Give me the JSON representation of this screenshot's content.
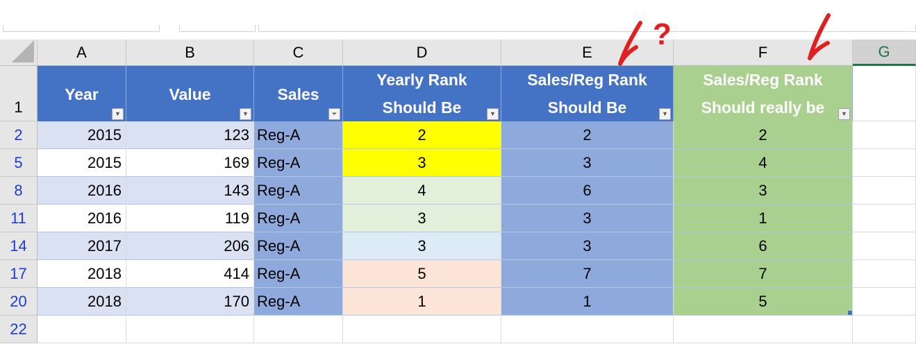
{
  "columns": [
    "A",
    "B",
    "C",
    "D",
    "E",
    "F",
    "G"
  ],
  "selected_column": "G",
  "row_numbers": [
    "1",
    "2",
    "5",
    "8",
    "11",
    "14",
    "17",
    "20",
    "22"
  ],
  "headers": [
    {
      "line1": "Year",
      "line2": ""
    },
    {
      "line1": "Value",
      "line2": ""
    },
    {
      "line1": "Sales",
      "line2": ""
    },
    {
      "line1": "Yearly Rank",
      "line2": "Should Be"
    },
    {
      "line1": "Sales/Reg Rank",
      "line2": "Should Be"
    },
    {
      "line1": "Sales/Reg Rank",
      "line2": "Should really be"
    }
  ],
  "filter_icons": [
    "dropdown-arrow",
    "dropdown-arrow",
    "filter-applied",
    "dropdown-arrow",
    "dropdown-arrow",
    "dropdown-arrow"
  ],
  "rows": [
    {
      "year": "2015",
      "value": "123",
      "sales": "Reg-A",
      "yearly": "2",
      "salesreg": "2",
      "really": "2",
      "d_color": "#FFFF00"
    },
    {
      "year": "2015",
      "value": "169",
      "sales": "Reg-A",
      "yearly": "3",
      "salesreg": "3",
      "really": "4",
      "d_color": "#FFFF00"
    },
    {
      "year": "2016",
      "value": "143",
      "sales": "Reg-A",
      "yearly": "4",
      "salesreg": "6",
      "really": "3",
      "d_color": "#E2EFDA"
    },
    {
      "year": "2016",
      "value": "119",
      "sales": "Reg-A",
      "yearly": "3",
      "salesreg": "3",
      "really": "1",
      "d_color": "#E2EFDA"
    },
    {
      "year": "2017",
      "value": "206",
      "sales": "Reg-A",
      "yearly": "3",
      "salesreg": "3",
      "really": "6",
      "d_color": "#DDEBF7"
    },
    {
      "year": "2018",
      "value": "414",
      "sales": "Reg-A",
      "yearly": "5",
      "salesreg": "7",
      "really": "7",
      "d_color": "#FCE4D6"
    },
    {
      "year": "2018",
      "value": "170",
      "sales": "Reg-A",
      "yearly": "1",
      "salesreg": "1",
      "really": "5",
      "d_color": "#FCE4D6"
    }
  ],
  "annotations": {
    "question_mark": "?",
    "color": "#E02020"
  },
  "colors": {
    "header_blue": "#4472C4",
    "header_green": "#A9D08E",
    "band": "#D9E1F2",
    "column_blue": "#8EA9DB"
  }
}
